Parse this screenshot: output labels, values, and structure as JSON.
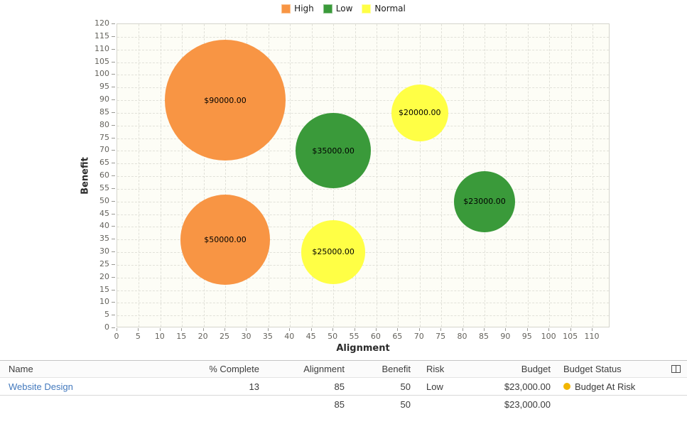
{
  "chart_data": {
    "type": "bubble",
    "title": "",
    "xlabel": "Alignment",
    "ylabel": "Benefit",
    "x_axis": {
      "min": 0,
      "max": 110,
      "step": 5
    },
    "y_axis": {
      "min": 0,
      "max": 120,
      "step": 5
    },
    "xlim": [
      0,
      114
    ],
    "ylim": [
      0,
      120
    ],
    "grid": "dashed",
    "legend_position": "top-center",
    "bubble_scale": {
      "ref_value": 90000,
      "ref_radius_px": 85
    },
    "series": [
      {
        "name": "High",
        "color": "#F89544",
        "swatch_border": "#FBC28E",
        "points": [
          {
            "x": 25,
            "y": 90,
            "value": 90000,
            "label": "$90000.00"
          },
          {
            "x": 25,
            "y": 35,
            "value": 50000,
            "label": "$50000.00"
          }
        ]
      },
      {
        "name": "Low",
        "color": "#3A9A3A",
        "swatch_border": "#8FC48F",
        "points": [
          {
            "x": 50,
            "y": 70,
            "value": 35000,
            "label": "$35000.00"
          },
          {
            "x": 85,
            "y": 50,
            "value": 23000,
            "label": "$23000.00"
          }
        ]
      },
      {
        "name": "Normal",
        "color": "#FFFF45",
        "swatch_border": "#FFFFA3",
        "points": [
          {
            "x": 70,
            "y": 85,
            "value": 20000,
            "label": "$20000.00"
          },
          {
            "x": 50,
            "y": 30,
            "value": 25000,
            "label": "$25000.00"
          }
        ]
      }
    ]
  },
  "table": {
    "columns": [
      "Name",
      "% Complete",
      "Alignment",
      "Benefit",
      "Risk",
      "Budget",
      "Budget Status"
    ],
    "rows": [
      {
        "name": "Website Design",
        "percent_complete": "13",
        "alignment": "85",
        "benefit": "50",
        "risk": "Low",
        "budget": "$23,000.00",
        "budget_status": "Budget At Risk",
        "status_color": "#F2B600"
      }
    ],
    "summary": {
      "alignment": "85",
      "benefit": "50",
      "budget": "$23,000.00"
    },
    "link_color": "#4379BD"
  }
}
